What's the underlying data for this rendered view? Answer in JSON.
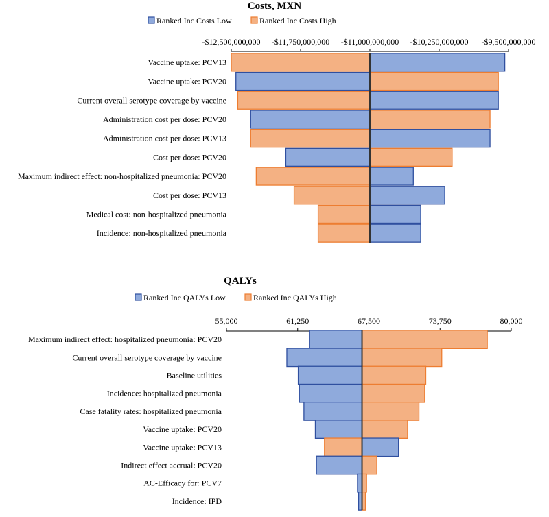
{
  "colors": {
    "low_fill": "#8faadc",
    "low_stroke": "#2f4f9f",
    "high_fill": "#f4b183",
    "high_stroke": "#ed7d31",
    "axis": "#000000",
    "baseline": "#333333"
  },
  "chart_data": [
    {
      "type": "bar",
      "orientation": "tornado",
      "title": "Costs, MXN",
      "series": [
        {
          "name": "Ranked Inc Costs Low",
          "key": "low"
        },
        {
          "name": "Ranked Inc Costs High",
          "key": "high"
        }
      ],
      "axis": {
        "min": -12500000000,
        "max": -9500000000,
        "baseline": -11000000000,
        "ticks": [
          -12500000000,
          -11750000000,
          -11000000000,
          -10250000000,
          -9500000000
        ],
        "tick_labels": [
          "-$12,500,000,000",
          "-$11,750,000,000",
          "-$11,000,000,000",
          "-$10,250,000,000",
          "-$9,500,000,000"
        ]
      },
      "categories": [
        "Vaccine uptake: PCV13",
        "Vaccine uptake: PCV20",
        "Current overall serotype coverage by vaccine",
        "Administration cost per dose: PCV20",
        "Administration cost per dose: PCV13",
        "Cost per dose: PCV20",
        "Maximum indirect effect: non-hospitalized pneumonia: PCV20",
        "Cost per dose: PCV13",
        "Medical cost: non-hospitalized pneumonia",
        "Incidence: non-hospitalized pneumonia"
      ],
      "low_values": [
        -9540000000,
        -12450000000,
        -9610000000,
        -12290000000,
        -9700000000,
        -11910000000,
        -10530000000,
        -10190000000,
        -10450000000,
        -10450000000
      ],
      "high_values": [
        -12500000000,
        -9610000000,
        -12430000000,
        -9700000000,
        -12290000000,
        -10110000000,
        -12230000000,
        -11820000000,
        -11560000000,
        -11560000000
      ]
    },
    {
      "type": "bar",
      "orientation": "tornado",
      "title": "QALYs",
      "series": [
        {
          "name": "Ranked Inc QALYs Low",
          "key": "low"
        },
        {
          "name": "Ranked Inc QALYs High",
          "key": "high"
        }
      ],
      "axis": {
        "min": 55000,
        "max": 80000,
        "baseline": 66900,
        "ticks": [
          55000,
          61250,
          67500,
          73750,
          80000
        ],
        "tick_labels": [
          "55,000",
          "61,250",
          "67,500",
          "73,750",
          "80,000"
        ]
      },
      "categories": [
        "Maximum indirect effect: hospitalized pneumonia: PCV20",
        "Current overall serotype coverage by vaccine",
        "Baseline utilities",
        "Incidence: hospitalized pneumonia",
        "Case fatality rates: hospitalized pneumonia",
        "Vaccine uptake: PCV20",
        "Vaccine uptake: PCV13",
        "Indirect effect accrual: PCV20",
        "AC-Efficacy for: PCV7",
        "Incidence: IPD"
      ],
      "low_values": [
        62300,
        60300,
        61300,
        61400,
        61800,
        62800,
        70100,
        62900,
        66500,
        66600
      ],
      "high_values": [
        77900,
        73900,
        72500,
        72400,
        71900,
        70900,
        63600,
        68200,
        67300,
        67200
      ]
    }
  ]
}
